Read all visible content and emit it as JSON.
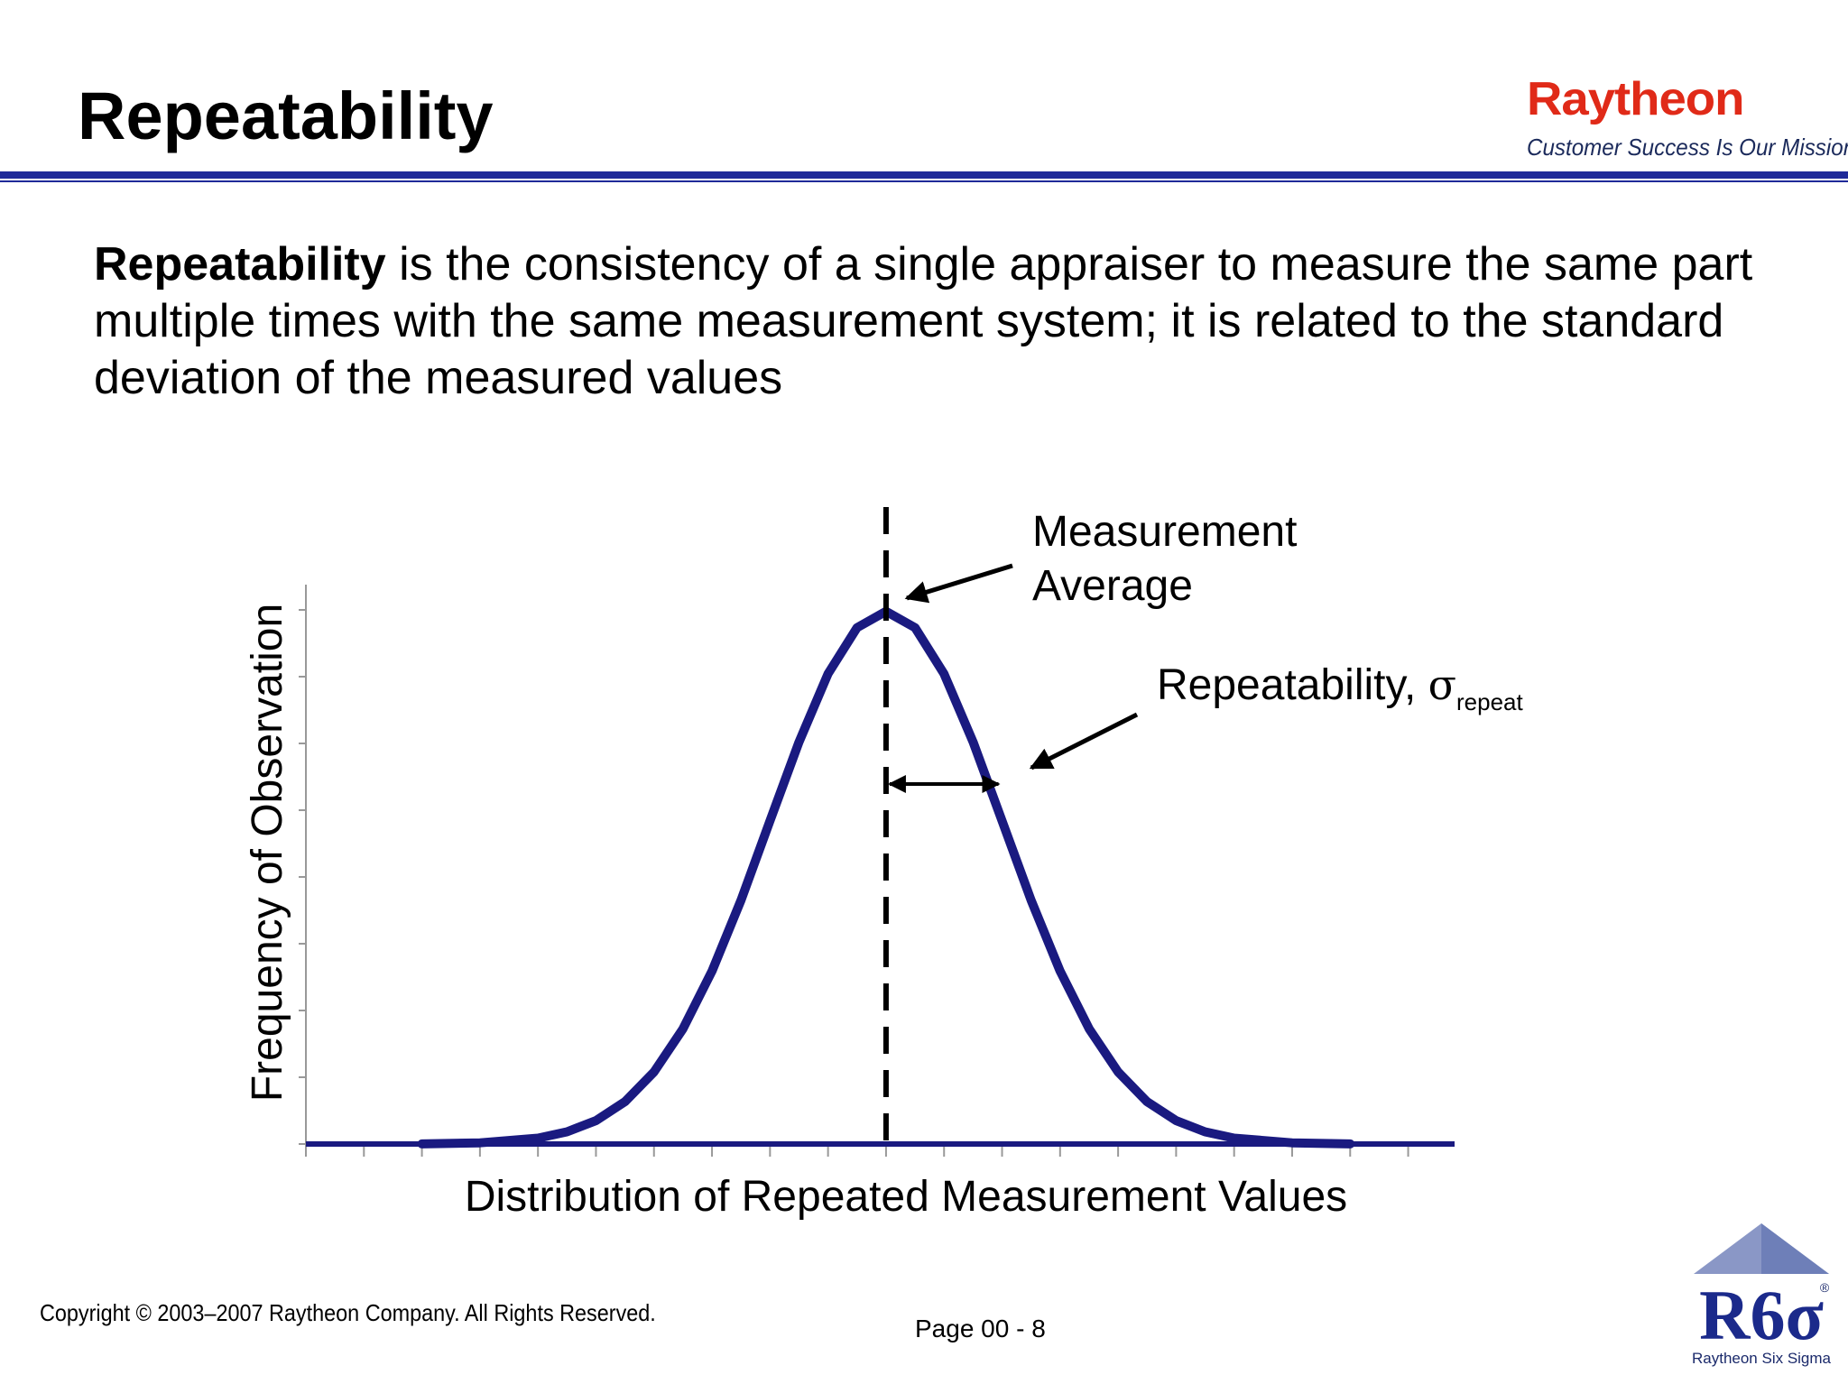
{
  "slide": {
    "title": "Repeatability",
    "definition_term": "Repeatability",
    "definition_rest": " is the consistency of a single appraiser to measure the same part multiple times with the same measurement system; it is related to the standard deviation of the measured values"
  },
  "brand": {
    "logo_text": "Raytheon",
    "tagline": "Customer Success Is Our Mission",
    "logo_color": "#e02a18",
    "rule_color": "#1f2a99"
  },
  "chart_data": {
    "type": "line",
    "xlabel": "Distribution of Repeated Measurement Values",
    "ylabel": "Frequency of Observation",
    "curve_color": "#1a1a80",
    "x": [
      -4.0,
      -3.5,
      -3.0,
      -2.75,
      -2.5,
      -2.25,
      -2.0,
      -1.75,
      -1.5,
      -1.25,
      -1.0,
      -0.75,
      -0.5,
      -0.25,
      0.0,
      0.25,
      0.5,
      0.75,
      1.0,
      1.25,
      1.5,
      1.75,
      2.0,
      2.25,
      2.5,
      2.75,
      3.0,
      3.5,
      4.0
    ],
    "y": [
      0.0001,
      0.0009,
      0.0044,
      0.0091,
      0.0175,
      0.0317,
      0.054,
      0.0863,
      0.1295,
      0.1826,
      0.242,
      0.3011,
      0.3521,
      0.3867,
      0.3989,
      0.3867,
      0.3521,
      0.3011,
      0.242,
      0.1826,
      0.1295,
      0.0863,
      0.054,
      0.0317,
      0.0175,
      0.0091,
      0.0044,
      0.0009,
      0.0001
    ],
    "xlim": [
      -5.0,
      4.9
    ],
    "ylim": [
      0,
      0.4
    ],
    "mean": 0.0,
    "sigma": 1.0,
    "annotations": {
      "mean_label_line1": "Measurement",
      "mean_label_line2": "Average",
      "sigma_label": "Repeatability, ",
      "sigma_symbol": "σ",
      "sigma_subscript": "repeat"
    }
  },
  "footer": {
    "copyright": "Copyright © 2003–2007 Raytheon Company. All Rights Reserved.",
    "page": "Page 00 - 8",
    "six_sigma_logo_text": "R6σ",
    "six_sigma_caption": "Raytheon Six Sigma",
    "registered_mark": "®"
  }
}
